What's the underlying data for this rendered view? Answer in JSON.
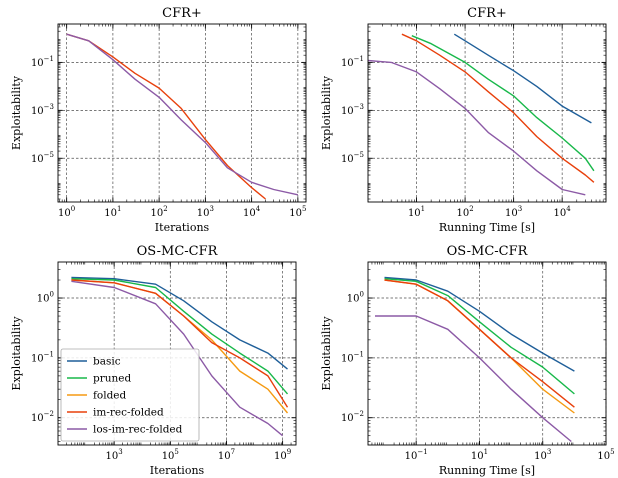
{
  "chart_data": [
    {
      "type": "line",
      "title": "CFR+",
      "xlabel": "Iterations",
      "ylabel": "Exploitability",
      "xscale": "log",
      "yscale": "log",
      "xlim": [
        0.65,
        150000
      ],
      "ylim": [
        1.5e-07,
        4
      ],
      "xticks": [
        "10^0",
        "10^1",
        "10^2",
        "10^3",
        "10^4",
        "10^5"
      ],
      "yticks": [
        "10^-5",
        "10^-3",
        "10^-1"
      ],
      "grid": true,
      "series": [
        {
          "name": "im-rec-folded",
          "color": "#e8400c",
          "x": [
            1,
            3,
            10,
            30,
            100,
            300,
            1000,
            3000,
            10000,
            20000
          ],
          "y": [
            1.5,
            0.8,
            0.17,
            0.035,
            0.0085,
            0.0012,
            6e-05,
            5e-06,
            6e-07,
            2e-07
          ]
        },
        {
          "name": "los-im-rec-folded",
          "color": "#8c5aa6",
          "x": [
            1,
            3,
            10,
            30,
            100,
            300,
            1000,
            3000,
            10000,
            30000,
            100000
          ],
          "y": [
            1.5,
            0.8,
            0.13,
            0.02,
            0.0035,
            0.0004,
            4.5e-05,
            4e-06,
            1e-06,
            5e-07,
            3e-07
          ]
        }
      ]
    },
    {
      "type": "line",
      "title": "CFR+",
      "xlabel": "Running Time [s]",
      "ylabel": "Exploitability",
      "xscale": "log",
      "yscale": "log",
      "xlim": [
        1,
        80000
      ],
      "ylim": [
        1.5e-07,
        4
      ],
      "xticks": [
        "10^1",
        "10^2",
        "10^3",
        "10^4"
      ],
      "yticks": [
        "10^-5",
        "10^-3",
        "10^-1"
      ],
      "grid": true,
      "series": [
        {
          "name": "basic",
          "color": "#1f5f99",
          "x": [
            60,
            100,
            300,
            1000,
            3000,
            10000,
            40000
          ],
          "y": [
            1.5,
            0.8,
            0.2,
            0.045,
            0.01,
            0.0015,
            0.0003
          ]
        },
        {
          "name": "pruned",
          "color": "#18b84a",
          "x": [
            8,
            20,
            100,
            300,
            1000,
            3000,
            10000,
            30000,
            45000
          ],
          "y": [
            1.3,
            0.6,
            0.1,
            0.02,
            0.004,
            0.0005,
            7e-05,
            1e-05,
            3e-06
          ]
        },
        {
          "name": "im-rec-folded",
          "color": "#e8400c",
          "x": [
            5,
            10,
            30,
            100,
            300,
            1000,
            3000,
            10000,
            30000,
            45000
          ],
          "y": [
            1.5,
            0.8,
            0.2,
            0.04,
            0.006,
            0.0008,
            8e-05,
            1e-05,
            2e-06,
            1e-06
          ]
        },
        {
          "name": "los-im-rec-folded",
          "color": "#8c5aa6",
          "x": [
            1,
            3,
            10,
            30,
            100,
            300,
            1000,
            3000,
            10000,
            30000
          ],
          "y": [
            0.12,
            0.1,
            0.04,
            0.008,
            0.0012,
            0.00012,
            2e-05,
            3e-06,
            5e-07,
            3e-07
          ]
        }
      ]
    },
    {
      "type": "line",
      "title": "OS-MC-CFR",
      "xlabel": "Iterations",
      "ylabel": "Exploitability",
      "xscale": "log",
      "yscale": "log",
      "xlim": [
        10,
        3000000000
      ],
      "ylim": [
        0.0035,
        4
      ],
      "xticks": [
        "10^3",
        "10^5",
        "10^7",
        "10^9"
      ],
      "yticks": [
        "10^-2",
        "10^-1",
        "10^0"
      ],
      "grid": true,
      "legend": {
        "position": "lower-left",
        "entries": [
          "basic",
          "pruned",
          "folded",
          "im-rec-folded",
          "los-im-rec-folded"
        ]
      },
      "series": [
        {
          "name": "basic",
          "color": "#1f5f99",
          "x": [
            30,
            1000,
            30000,
            300000,
            3000000,
            30000000,
            300000000,
            1500000000
          ],
          "y": [
            2.2,
            2.1,
            1.7,
            0.9,
            0.4,
            0.2,
            0.12,
            0.065
          ]
        },
        {
          "name": "pruned",
          "color": "#18b84a",
          "x": [
            30,
            1000,
            30000,
            300000,
            3000000,
            30000000,
            300000000,
            1500000000
          ],
          "y": [
            2.1,
            2,
            1.5,
            0.6,
            0.25,
            0.12,
            0.06,
            0.025
          ]
        },
        {
          "name": "folded",
          "color": "#f59a12",
          "x": [
            30,
            1000,
            30000,
            300000,
            3000000,
            30000000,
            300000000,
            1500000000
          ],
          "y": [
            2,
            1.8,
            1.2,
            0.5,
            0.2,
            0.06,
            0.03,
            0.012
          ]
        },
        {
          "name": "im-rec-folded",
          "color": "#e8400c",
          "x": [
            30,
            1000,
            30000,
            300000,
            3000000,
            30000000,
            300000000,
            1500000000
          ],
          "y": [
            2,
            1.8,
            1.2,
            0.5,
            0.18,
            0.1,
            0.05,
            0.015
          ]
        },
        {
          "name": "los-im-rec-folded",
          "color": "#8c5aa6",
          "x": [
            30,
            1000,
            30000,
            300000,
            3000000,
            30000000,
            300000000,
            1000000000
          ],
          "y": [
            1.9,
            1.5,
            0.8,
            0.25,
            0.05,
            0.015,
            0.008,
            0.005
          ]
        }
      ]
    },
    {
      "type": "line",
      "title": "OS-MC-CFR",
      "xlabel": "Running Time [s]",
      "ylabel": "Exploitability",
      "xscale": "log",
      "yscale": "log",
      "xlim": [
        0.003,
        100000
      ],
      "ylim": [
        0.0035,
        4
      ],
      "xticks": [
        "10^-1",
        "10^1",
        "10^3",
        "10^5"
      ],
      "yticks": [
        "10^-2",
        "10^-1",
        "10^0"
      ],
      "grid": true,
      "series": [
        {
          "name": "basic",
          "color": "#1f5f99",
          "x": [
            0.01,
            0.1,
            1,
            10,
            100,
            1000,
            10000
          ],
          "y": [
            2.2,
            2,
            1.3,
            0.6,
            0.25,
            0.12,
            0.06
          ]
        },
        {
          "name": "pruned",
          "color": "#18b84a",
          "x": [
            0.01,
            0.1,
            1,
            10,
            100,
            1000,
            10000
          ],
          "y": [
            2.1,
            1.9,
            1.1,
            0.4,
            0.15,
            0.07,
            0.025
          ]
        },
        {
          "name": "folded",
          "color": "#f59a12",
          "x": [
            0.01,
            0.1,
            1,
            10,
            100,
            1000,
            10000
          ],
          "y": [
            2,
            1.7,
            0.9,
            0.3,
            0.1,
            0.03,
            0.012
          ]
        },
        {
          "name": "im-rec-folded",
          "color": "#e8400c",
          "x": [
            0.01,
            0.1,
            1,
            10,
            100,
            1000,
            10000
          ],
          "y": [
            2,
            1.7,
            0.9,
            0.3,
            0.1,
            0.04,
            0.015
          ]
        },
        {
          "name": "los-im-rec-folded",
          "color": "#8c5aa6",
          "x": [
            0.005,
            0.1,
            1,
            10,
            100,
            1000,
            8000
          ],
          "y": [
            0.5,
            0.5,
            0.3,
            0.1,
            0.03,
            0.01,
            0.004
          ]
        }
      ]
    }
  ]
}
